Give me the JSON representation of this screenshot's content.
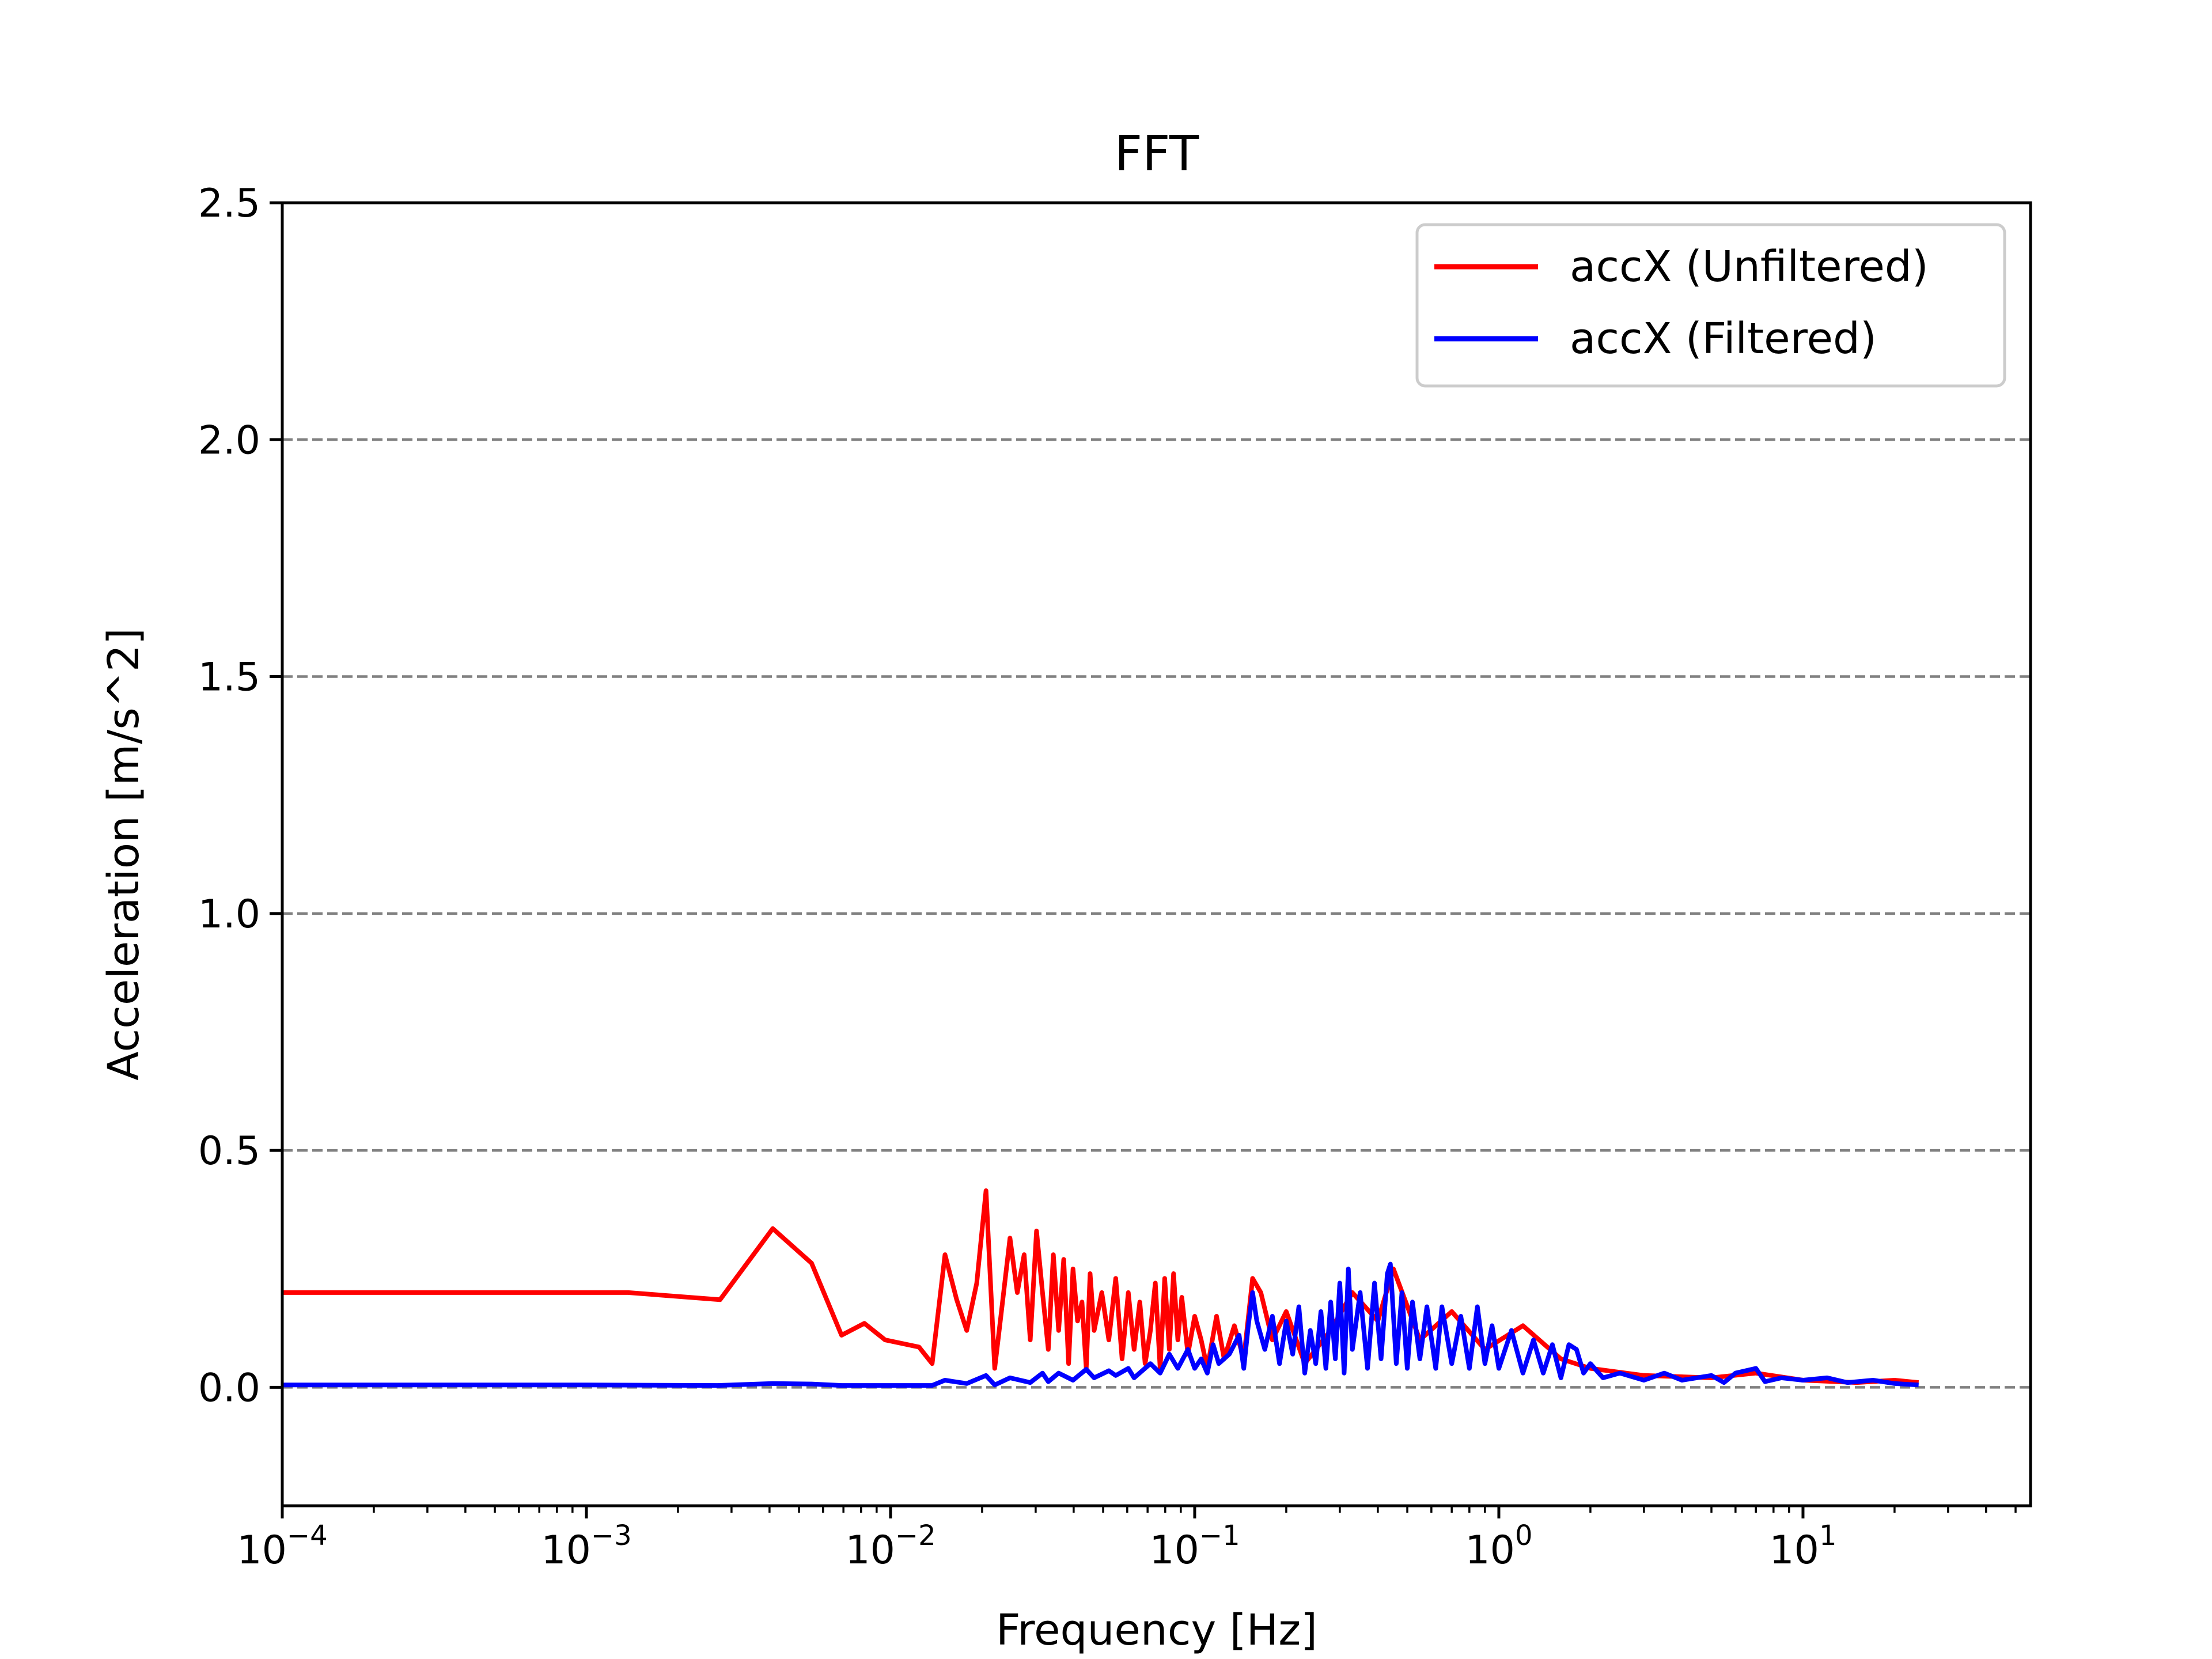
{
  "chart_data": {
    "type": "line",
    "title": "FFT",
    "xlabel": "Frequency [Hz]",
    "ylabel": "Acceleration [m/s^2]",
    "x_scale": "log",
    "xlim": [
      0.0001,
      56
    ],
    "ylim": [
      -0.25,
      2.5
    ],
    "y_ticks": [
      0.0,
      0.5,
      1.0,
      1.5,
      2.0,
      2.5
    ],
    "y_tick_labels": [
      "0.0",
      "0.5",
      "1.0",
      "1.5",
      "2.0",
      "2.5"
    ],
    "x_ticks": [
      {
        "value": 0.0001,
        "base": "10",
        "exp": "−4"
      },
      {
        "value": 0.001,
        "base": "10",
        "exp": "−3"
      },
      {
        "value": 0.01,
        "base": "10",
        "exp": "−2"
      },
      {
        "value": 0.1,
        "base": "10",
        "exp": "−1"
      },
      {
        "value": 1,
        "base": "10",
        "exp": "0"
      },
      {
        "value": 10,
        "base": "10",
        "exp": "1"
      }
    ],
    "grid": "horizontal dashed at y ticks",
    "legend_position": "top-right",
    "series": [
      {
        "name": "accX (Unfiltered)",
        "color": "#ff0000",
        "points": [
          [
            0.0001,
            0.2
          ],
          [
            0.00137,
            0.2
          ],
          [
            0.00275,
            0.185
          ],
          [
            0.0041,
            0.335
          ],
          [
            0.0055,
            0.262
          ],
          [
            0.0069,
            0.11
          ],
          [
            0.0082,
            0.135
          ],
          [
            0.0096,
            0.1
          ],
          [
            0.0124,
            0.085
          ],
          [
            0.0137,
            0.05
          ],
          [
            0.0151,
            0.28
          ],
          [
            0.0165,
            0.185
          ],
          [
            0.0178,
            0.12
          ],
          [
            0.0192,
            0.22
          ],
          [
            0.0206,
            0.415
          ],
          [
            0.022,
            0.04
          ],
          [
            0.0233,
            0.175
          ],
          [
            0.0247,
            0.315
          ],
          [
            0.0261,
            0.2
          ],
          [
            0.0275,
            0.28
          ],
          [
            0.0288,
            0.1
          ],
          [
            0.0302,
            0.33
          ],
          [
            0.0316,
            0.2
          ],
          [
            0.033,
            0.08
          ],
          [
            0.0343,
            0.28
          ],
          [
            0.0357,
            0.12
          ],
          [
            0.0371,
            0.27
          ],
          [
            0.0385,
            0.05
          ],
          [
            0.0398,
            0.25
          ],
          [
            0.0412,
            0.14
          ],
          [
            0.0426,
            0.18
          ],
          [
            0.044,
            0.04
          ],
          [
            0.0453,
            0.24
          ],
          [
            0.0467,
            0.12
          ],
          [
            0.0495,
            0.2
          ],
          [
            0.0522,
            0.1
          ],
          [
            0.055,
            0.23
          ],
          [
            0.0577,
            0.06
          ],
          [
            0.0605,
            0.2
          ],
          [
            0.0632,
            0.08
          ],
          [
            0.066,
            0.18
          ],
          [
            0.0687,
            0.05
          ],
          [
            0.0715,
            0.12
          ],
          [
            0.0742,
            0.22
          ],
          [
            0.077,
            0.04
          ],
          [
            0.0797,
            0.23
          ],
          [
            0.0825,
            0.08
          ],
          [
            0.0852,
            0.24
          ],
          [
            0.088,
            0.1
          ],
          [
            0.0907,
            0.19
          ],
          [
            0.095,
            0.07
          ],
          [
            0.1,
            0.15
          ],
          [
            0.105,
            0.1
          ],
          [
            0.11,
            0.04
          ],
          [
            0.118,
            0.15
          ],
          [
            0.125,
            0.06
          ],
          [
            0.135,
            0.13
          ],
          [
            0.145,
            0.06
          ],
          [
            0.155,
            0.23
          ],
          [
            0.165,
            0.2
          ],
          [
            0.18,
            0.1
          ],
          [
            0.2,
            0.16
          ],
          [
            0.23,
            0.05
          ],
          [
            0.28,
            0.12
          ],
          [
            0.33,
            0.2
          ],
          [
            0.4,
            0.14
          ],
          [
            0.45,
            0.25
          ],
          [
            0.55,
            0.1
          ],
          [
            0.7,
            0.16
          ],
          [
            0.9,
            0.08
          ],
          [
            1.2,
            0.13
          ],
          [
            1.6,
            0.06
          ],
          [
            2.0,
            0.04
          ],
          [
            3.0,
            0.025
          ],
          [
            5.0,
            0.02
          ],
          [
            7.0,
            0.03
          ],
          [
            10.0,
            0.015
          ],
          [
            15.0,
            0.01
          ],
          [
            20.0,
            0.015
          ],
          [
            24.0,
            0.01
          ]
        ]
      },
      {
        "name": "accX (Filtered)",
        "color": "#0000ff",
        "points": [
          [
            0.0001,
            0.005
          ],
          [
            0.001,
            0.005
          ],
          [
            0.0027,
            0.004
          ],
          [
            0.0041,
            0.008
          ],
          [
            0.0055,
            0.007
          ],
          [
            0.0069,
            0.004
          ],
          [
            0.0096,
            0.004
          ],
          [
            0.0137,
            0.004
          ],
          [
            0.0151,
            0.015
          ],
          [
            0.0178,
            0.008
          ],
          [
            0.0206,
            0.025
          ],
          [
            0.022,
            0.005
          ],
          [
            0.0247,
            0.02
          ],
          [
            0.0288,
            0.01
          ],
          [
            0.0316,
            0.03
          ],
          [
            0.033,
            0.012
          ],
          [
            0.0357,
            0.03
          ],
          [
            0.0398,
            0.015
          ],
          [
            0.044,
            0.038
          ],
          [
            0.0467,
            0.02
          ],
          [
            0.0522,
            0.035
          ],
          [
            0.055,
            0.025
          ],
          [
            0.0605,
            0.04
          ],
          [
            0.0632,
            0.02
          ],
          [
            0.0715,
            0.05
          ],
          [
            0.077,
            0.03
          ],
          [
            0.0825,
            0.07
          ],
          [
            0.088,
            0.04
          ],
          [
            0.095,
            0.08
          ],
          [
            0.1,
            0.04
          ],
          [
            0.105,
            0.06
          ],
          [
            0.11,
            0.03
          ],
          [
            0.115,
            0.09
          ],
          [
            0.12,
            0.05
          ],
          [
            0.13,
            0.07
          ],
          [
            0.14,
            0.11
          ],
          [
            0.145,
            0.04
          ],
          [
            0.15,
            0.13
          ],
          [
            0.155,
            0.2
          ],
          [
            0.16,
            0.14
          ],
          [
            0.17,
            0.08
          ],
          [
            0.18,
            0.15
          ],
          [
            0.19,
            0.05
          ],
          [
            0.2,
            0.14
          ],
          [
            0.21,
            0.07
          ],
          [
            0.22,
            0.17
          ],
          [
            0.23,
            0.03
          ],
          [
            0.24,
            0.12
          ],
          [
            0.25,
            0.05
          ],
          [
            0.26,
            0.16
          ],
          [
            0.27,
            0.04
          ],
          [
            0.28,
            0.18
          ],
          [
            0.29,
            0.06
          ],
          [
            0.3,
            0.22
          ],
          [
            0.31,
            0.03
          ],
          [
            0.32,
            0.25
          ],
          [
            0.33,
            0.08
          ],
          [
            0.35,
            0.2
          ],
          [
            0.37,
            0.04
          ],
          [
            0.39,
            0.22
          ],
          [
            0.41,
            0.06
          ],
          [
            0.43,
            0.24
          ],
          [
            0.44,
            0.26
          ],
          [
            0.46,
            0.05
          ],
          [
            0.48,
            0.2
          ],
          [
            0.5,
            0.04
          ],
          [
            0.52,
            0.18
          ],
          [
            0.55,
            0.06
          ],
          [
            0.58,
            0.17
          ],
          [
            0.62,
            0.04
          ],
          [
            0.65,
            0.17
          ],
          [
            0.7,
            0.05
          ],
          [
            0.75,
            0.15
          ],
          [
            0.8,
            0.04
          ],
          [
            0.85,
            0.17
          ],
          [
            0.9,
            0.05
          ],
          [
            0.95,
            0.13
          ],
          [
            1.0,
            0.04
          ],
          [
            1.1,
            0.12
          ],
          [
            1.2,
            0.03
          ],
          [
            1.3,
            0.1
          ],
          [
            1.4,
            0.03
          ],
          [
            1.5,
            0.09
          ],
          [
            1.6,
            0.02
          ],
          [
            1.7,
            0.09
          ],
          [
            1.8,
            0.08
          ],
          [
            1.9,
            0.03
          ],
          [
            2.0,
            0.05
          ],
          [
            2.2,
            0.02
          ],
          [
            2.5,
            0.03
          ],
          [
            3.0,
            0.015
          ],
          [
            3.5,
            0.03
          ],
          [
            4.0,
            0.015
          ],
          [
            5.0,
            0.025
          ],
          [
            5.5,
            0.01
          ],
          [
            6.0,
            0.03
          ],
          [
            7.0,
            0.04
          ],
          [
            7.5,
            0.012
          ],
          [
            8.5,
            0.02
          ],
          [
            10.0,
            0.015
          ],
          [
            12.0,
            0.02
          ],
          [
            14.0,
            0.01
          ],
          [
            17.0,
            0.015
          ],
          [
            20.0,
            0.008
          ],
          [
            24.0,
            0.005
          ]
        ]
      }
    ]
  }
}
